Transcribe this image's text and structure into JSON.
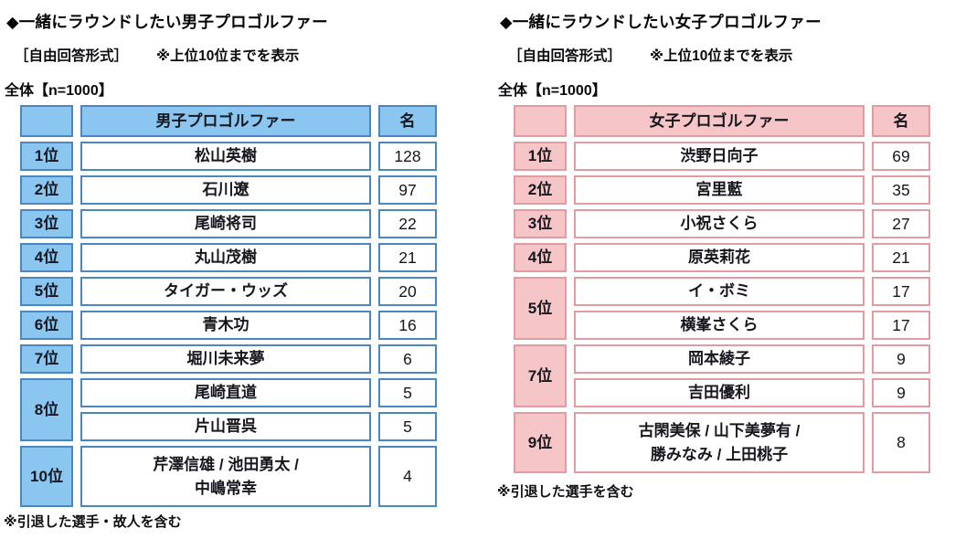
{
  "chart_data": [
    {
      "type": "table",
      "title": "◆一緒にラウンドしたい男子プロゴルファー",
      "format_label": "［自由回答形式］",
      "display_note": "※上位10位までを表示",
      "sample_label": "全体【n=1000】",
      "columns": {
        "rank": "",
        "name": "男子プロゴルファー",
        "count": "名"
      },
      "footnote": "※引退した選手・故人を含む",
      "accent": {
        "cell_fill": "#8AC6EF",
        "cell_border": "#4A86C0"
      },
      "groups": [
        {
          "rank": "1位",
          "entries": [
            {
              "name": "松山英樹",
              "count": 128
            }
          ]
        },
        {
          "rank": "2位",
          "entries": [
            {
              "name": "石川遼",
              "count": 97
            }
          ]
        },
        {
          "rank": "3位",
          "entries": [
            {
              "name": "尾崎将司",
              "count": 22
            }
          ]
        },
        {
          "rank": "4位",
          "entries": [
            {
              "name": "丸山茂樹",
              "count": 21
            }
          ]
        },
        {
          "rank": "5位",
          "entries": [
            {
              "name": "タイガー・ウッズ",
              "count": 20
            }
          ]
        },
        {
          "rank": "6位",
          "entries": [
            {
              "name": "青木功",
              "count": 16
            }
          ]
        },
        {
          "rank": "7位",
          "entries": [
            {
              "name": "堀川未来夢",
              "count": 6
            }
          ]
        },
        {
          "rank": "8位",
          "entries": [
            {
              "name": "尾崎直道",
              "count": 5
            },
            {
              "name": "片山晋呉",
              "count": 5
            }
          ]
        },
        {
          "rank": "10位",
          "entries": [
            {
              "name": "芹澤信雄 / 池田勇太 /\n中嶋常幸",
              "count": 4
            }
          ]
        }
      ]
    },
    {
      "type": "table",
      "title": "◆一緒にラウンドしたい女子プロゴルファー",
      "format_label": "［自由回答形式］",
      "display_note": "※上位10位までを表示",
      "sample_label": "全体【n=1000】",
      "columns": {
        "rank": "",
        "name": "女子プロゴルファー",
        "count": "名"
      },
      "footnote": "※引退した選手を含む",
      "accent": {
        "cell_fill": "#F6C5C7",
        "cell_border": "#E29B9E"
      },
      "groups": [
        {
          "rank": "1位",
          "entries": [
            {
              "name": "渋野日向子",
              "count": 69
            }
          ]
        },
        {
          "rank": "2位",
          "entries": [
            {
              "name": "宮里藍",
              "count": 35
            }
          ]
        },
        {
          "rank": "3位",
          "entries": [
            {
              "name": "小祝さくら",
              "count": 27
            }
          ]
        },
        {
          "rank": "4位",
          "entries": [
            {
              "name": "原英莉花",
              "count": 21
            }
          ]
        },
        {
          "rank": "5位",
          "entries": [
            {
              "name": "イ・ボミ",
              "count": 17
            },
            {
              "name": "横峯さくら",
              "count": 17
            }
          ]
        },
        {
          "rank": "7位",
          "entries": [
            {
              "name": "岡本綾子",
              "count": 9
            },
            {
              "name": "吉田優利",
              "count": 9
            }
          ]
        },
        {
          "rank": "9位",
          "entries": [
            {
              "name": "古閑美保 / 山下美夢有 /\n勝みなみ / 上田桃子",
              "count": 8
            }
          ]
        }
      ]
    }
  ]
}
